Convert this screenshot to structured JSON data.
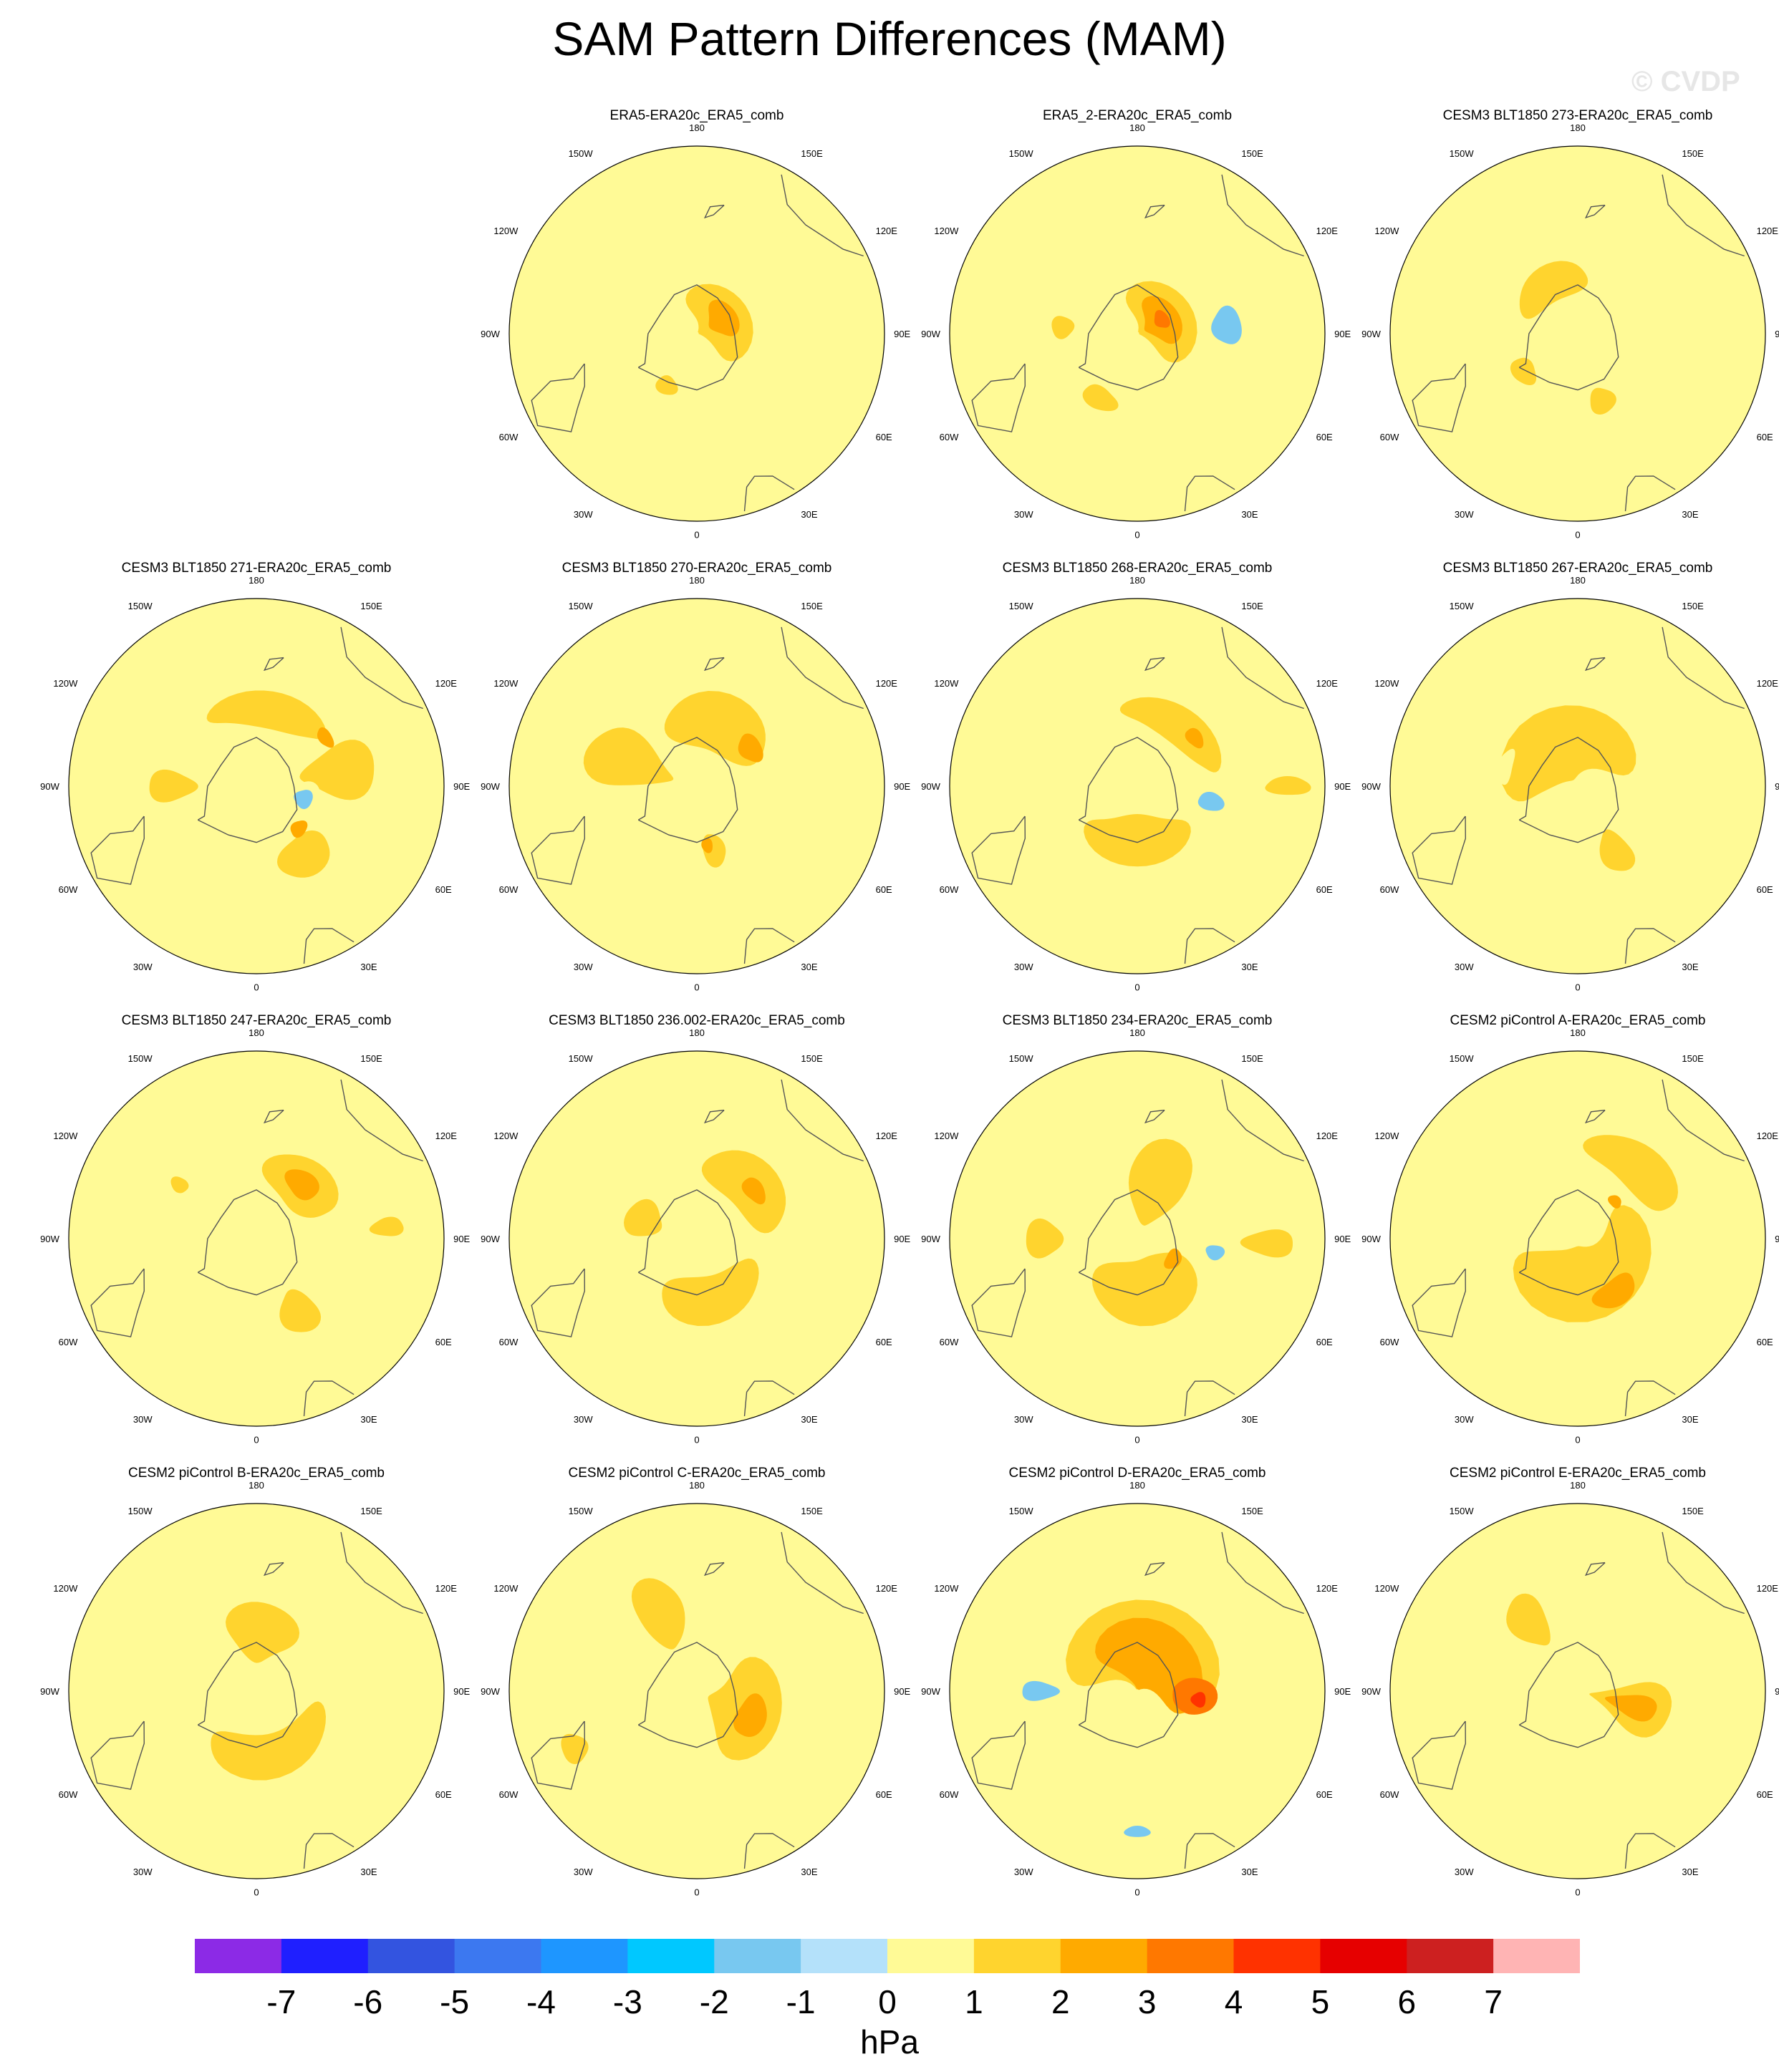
{
  "title": "SAM Pattern Differences (MAM)",
  "watermark": "© CVDP",
  "units": "hPa",
  "colorbar": {
    "colors": [
      "#8c2ae6",
      "#1f1fff",
      "#3354e0",
      "#3c78f0",
      "#1e96ff",
      "#00c8ff",
      "#78c8f0",
      "#b4e1fa",
      "#fffa96",
      "#ffd42e",
      "#ffaa00",
      "#ff7800",
      "#ff3200",
      "#e60000",
      "#cd2020",
      "#ffb4b4"
    ],
    "labels": [
      "-7",
      "-6",
      "-5",
      "-4",
      "-3",
      "-2",
      "-1",
      "0",
      "1",
      "2",
      "3",
      "4",
      "5",
      "6",
      "7"
    ]
  },
  "map_labels": {
    "lon_0": "0",
    "lon_30w": "30W",
    "lon_30e": "30E",
    "lon_60w": "60W",
    "lon_60e": "60E",
    "lon_90w": "90W",
    "lon_90e": "90E",
    "lon_120w": "120W",
    "lon_120e": "120E",
    "lon_150w": "150W",
    "lon_150e": "150E",
    "lon_180": "180"
  },
  "panels": [
    {
      "title": "ERA5-ERA20c_ERA5_comb",
      "slot": 1,
      "blobs": [
        {
          "level": 0.5,
          "lon": 150,
          "r": 0.55,
          "a": 0.36,
          "b": 0.18
        },
        {
          "level": 0.5,
          "lon": 95,
          "r": 0.55,
          "a": 0.1,
          "b": 0.28
        },
        {
          "level": 1.5,
          "lon": 120,
          "r": 0.15,
          "a": 0.2,
          "b": 0.16
        },
        {
          "level": 2.5,
          "lon": 120,
          "r": 0.16,
          "a": 0.1,
          "b": 0.08
        },
        {
          "level": 1.5,
          "lon": -30,
          "r": 0.32,
          "a": 0.06,
          "b": 0.05
        },
        {
          "level": 0.5,
          "lon": -25,
          "r": 0.85,
          "a": 0.06,
          "b": 0.08
        }
      ]
    },
    {
      "title": "ERA5_2-ERA20c_ERA5_comb",
      "slot": 2,
      "blobs": [
        {
          "level": 0.5,
          "lon": 95,
          "r": 0.42,
          "a": 0.26,
          "b": 0.22
        },
        {
          "level": -1.5,
          "lon": 95,
          "r": 0.48,
          "a": 0.1,
          "b": 0.08
        },
        {
          "level": 0.5,
          "lon": 160,
          "r": 0.52,
          "a": 0.25,
          "b": 0.14
        },
        {
          "level": 1.5,
          "lon": 120,
          "r": 0.15,
          "a": 0.2,
          "b": 0.18
        },
        {
          "level": 2.5,
          "lon": 120,
          "r": 0.15,
          "a": 0.13,
          "b": 0.1
        },
        {
          "level": 3.5,
          "lon": 120,
          "r": 0.15,
          "a": 0.05,
          "b": 0.04
        },
        {
          "level": 1.5,
          "lon": -30,
          "r": 0.4,
          "a": 0.1,
          "b": 0.06
        },
        {
          "level": 1.5,
          "lon": 265,
          "r": 0.4,
          "a": 0.06,
          "b": 0.06
        }
      ]
    },
    {
      "title": "CESM3 BLT1850 273-ERA20c_ERA5_comb",
      "slot": 3,
      "blobs": [
        {
          "level": 0.5,
          "lon": -25,
          "r": 0.78,
          "a": 0.18,
          "b": 0.14
        },
        {
          "level": 0.5,
          "lon": 92,
          "r": 0.32,
          "a": 0.06,
          "b": 0.09
        },
        {
          "level": 0.5,
          "lon": 270,
          "r": 0.85,
          "a": 0.06,
          "b": 0.13
        },
        {
          "level": 1.5,
          "lon": 210,
          "r": 0.3,
          "a": 0.22,
          "b": 0.1
        },
        {
          "level": 1.5,
          "lon": -55,
          "r": 0.35,
          "a": 0.08,
          "b": 0.06
        },
        {
          "level": 1.5,
          "lon": 20,
          "r": 0.38,
          "a": 0.07,
          "b": 0.07
        }
      ]
    },
    {
      "title": "CESM3 BLT1850 271-ERA20c_ERA5_comb",
      "slot": 4,
      "blobs": [
        {
          "level": 1.5,
          "lon": 170,
          "r": 0.42,
          "a": 0.33,
          "b": 0.1
        },
        {
          "level": 1.5,
          "lon": 100,
          "r": 0.45,
          "a": 0.14,
          "b": 0.2
        },
        {
          "level": 1.5,
          "lon": 35,
          "r": 0.45,
          "a": 0.15,
          "b": 0.11
        },
        {
          "level": 1.5,
          "lon": 270,
          "r": 0.45,
          "a": 0.08,
          "b": 0.13
        },
        {
          "level": 0.5,
          "lon": 75,
          "r": 0.25,
          "a": 0.09,
          "b": 0.1
        },
        {
          "level": -1.5,
          "lon": 75,
          "r": 0.26,
          "a": 0.05,
          "b": 0.05
        },
        {
          "level": 2.5,
          "lon": 45,
          "r": 0.32,
          "a": 0.05,
          "b": 0.04
        },
        {
          "level": 2.5,
          "lon": 125,
          "r": 0.45,
          "a": 0.06,
          "b": 0.035
        },
        {
          "level": 0.5,
          "lon": 180,
          "r": 0.9,
          "a": 0.35,
          "b": 0.07
        }
      ]
    },
    {
      "title": "CESM3 BLT1850 270-ERA20c_ERA5_comb",
      "slot": 5,
      "blobs": [
        {
          "level": 1.5,
          "lon": 160,
          "r": 0.35,
          "a": 0.3,
          "b": 0.16
        },
        {
          "level": 1.5,
          "lon": 250,
          "r": 0.38,
          "a": 0.14,
          "b": 0.24
        },
        {
          "level": 1.5,
          "lon": 15,
          "r": 0.35,
          "a": 0.06,
          "b": 0.09
        },
        {
          "level": 2.5,
          "lon": 125,
          "r": 0.35,
          "a": 0.08,
          "b": 0.06
        },
        {
          "level": 2.5,
          "lon": 10,
          "r": 0.32,
          "a": 0.03,
          "b": 0.04
        },
        {
          "level": 0.5,
          "lon": 85,
          "r": 0.47,
          "a": 0.08,
          "b": 0.1
        },
        {
          "level": 0.5,
          "lon": 215,
          "r": 0.85,
          "a": 0.12,
          "b": 0.12
        },
        {
          "level": 0.5,
          "lon": 175,
          "r": 0.8,
          "a": 0.06,
          "b": 0.05
        },
        {
          "level": 0.5,
          "lon": -10,
          "r": 0.85,
          "a": 0.1,
          "b": 0.06
        }
      ]
    },
    {
      "title": "CESM3 BLT1850 268-ERA20c_ERA5_comb",
      "slot": 6,
      "blobs": [
        {
          "level": 1.5,
          "lon": 0,
          "r": 0.3,
          "a": 0.28,
          "b": 0.14
        },
        {
          "level": 1.5,
          "lon": 145,
          "r": 0.4,
          "a": 0.32,
          "b": 0.1
        },
        {
          "level": 1.5,
          "lon": 90,
          "r": 0.8,
          "a": 0.05,
          "b": 0.12
        },
        {
          "level": 0.5,
          "lon": 78,
          "r": 0.4,
          "a": 0.08,
          "b": 0.12
        },
        {
          "level": -1.5,
          "lon": 78,
          "r": 0.4,
          "a": 0.05,
          "b": 0.07
        },
        {
          "level": 2.5,
          "lon": 130,
          "r": 0.4,
          "a": 0.06,
          "b": 0.04
        },
        {
          "level": 0.5,
          "lon": 180,
          "r": 0.88,
          "a": 0.33,
          "b": 0.08
        },
        {
          "level": 0.5,
          "lon": 270,
          "r": 0.9,
          "a": 0.1,
          "b": 0.1
        },
        {
          "level": 0.5,
          "lon": -30,
          "r": 0.9,
          "a": 0.3,
          "b": 0.07
        }
      ]
    },
    {
      "title": "CESM3 BLT1850 267-ERA20c_ERA5_comb",
      "slot": 7,
      "blobs": [
        {
          "level": 1.5,
          "lon": 200,
          "r": 0.25,
          "a": 0.4,
          "b": 0.2
        },
        {
          "level": 1.5,
          "lon": 30,
          "r": 0.4,
          "a": 0.08,
          "b": 0.12
        },
        {
          "level": 0.5,
          "lon": 110,
          "r": 0.55,
          "a": 0.1,
          "b": 0.1
        },
        {
          "level": 0.5,
          "lon": 255,
          "r": 0.4,
          "a": 0.1,
          "b": 0.04
        },
        {
          "level": 0.5,
          "lon": 200,
          "r": 0.9,
          "a": 0.55,
          "b": 0.1
        },
        {
          "level": 0.5,
          "lon": -25,
          "r": 0.9,
          "a": 0.1,
          "b": 0.08
        }
      ]
    },
    {
      "title": "CESM3 BLT1850 247-ERA20c_ERA5_comb",
      "slot": 8,
      "blobs": [
        {
          "level": 1.5,
          "lon": 140,
          "r": 0.38,
          "a": 0.22,
          "b": 0.14
        },
        {
          "level": 2.5,
          "lon": 140,
          "r": 0.38,
          "a": 0.1,
          "b": 0.07
        },
        {
          "level": 1.5,
          "lon": 30,
          "r": 0.45,
          "a": 0.1,
          "b": 0.12
        },
        {
          "level": 1.5,
          "lon": 95,
          "r": 0.7,
          "a": 0.05,
          "b": 0.09
        },
        {
          "level": 1.5,
          "lon": 235,
          "r": 0.5,
          "a": 0.04,
          "b": 0.05
        },
        {
          "level": 0.5,
          "lon": 180,
          "r": 0.88,
          "a": 0.45,
          "b": 0.09
        },
        {
          "level": 0.5,
          "lon": -20,
          "r": 0.9,
          "a": 0.15,
          "b": 0.08
        }
      ]
    },
    {
      "title": "CESM3 BLT1850 236.002-ERA20c_ERA5_comb",
      "slot": 9,
      "blobs": [
        {
          "level": 1.5,
          "lon": 15,
          "r": 0.33,
          "a": 0.3,
          "b": 0.13
        },
        {
          "level": 1.5,
          "lon": 135,
          "r": 0.4,
          "a": 0.28,
          "b": 0.14
        },
        {
          "level": 1.5,
          "lon": 250,
          "r": 0.3,
          "a": 0.1,
          "b": 0.1
        },
        {
          "level": 2.5,
          "lon": 130,
          "r": 0.4,
          "a": 0.08,
          "b": 0.05
        },
        {
          "level": 0.5,
          "lon": 85,
          "r": 0.5,
          "a": 0.09,
          "b": 0.1
        },
        {
          "level": 0.5,
          "lon": 195,
          "r": 0.88,
          "a": 0.2,
          "b": 0.1
        },
        {
          "level": 0.5,
          "lon": -25,
          "r": 0.88,
          "a": 0.12,
          "b": 0.08
        }
      ]
    },
    {
      "title": "CESM3 BLT1850 234-ERA20c_ERA5_comb",
      "slot": 10,
      "blobs": [
        {
          "level": 1.5,
          "lon": 10,
          "r": 0.28,
          "a": 0.3,
          "b": 0.18
        },
        {
          "level": 1.5,
          "lon": 160,
          "r": 0.3,
          "a": 0.15,
          "b": 0.24
        },
        {
          "level": 1.5,
          "lon": 270,
          "r": 0.5,
          "a": 0.1,
          "b": 0.1
        },
        {
          "level": 1.5,
          "lon": 88,
          "r": 0.7,
          "a": 0.07,
          "b": 0.14
        },
        {
          "level": 0.5,
          "lon": 80,
          "r": 0.42,
          "a": 0.07,
          "b": 0.13
        },
        {
          "level": -1.5,
          "lon": 80,
          "r": 0.42,
          "a": 0.04,
          "b": 0.05
        },
        {
          "level": 2.5,
          "lon": 60,
          "r": 0.22,
          "a": 0.06,
          "b": 0.04
        },
        {
          "level": 0.5,
          "lon": -25,
          "r": 0.88,
          "a": 0.12,
          "b": 0.07
        }
      ]
    },
    {
      "title": "CESM2 piControl A-ERA20c_ERA5_comb",
      "slot": 11,
      "blobs": [
        {
          "level": 1.5,
          "lon": 20,
          "r": 0.25,
          "a": 0.45,
          "b": 0.2
        },
        {
          "level": 1.5,
          "lon": 140,
          "r": 0.5,
          "a": 0.3,
          "b": 0.12
        },
        {
          "level": 2.5,
          "lon": 35,
          "r": 0.35,
          "a": 0.13,
          "b": 0.07
        },
        {
          "level": 2.5,
          "lon": 135,
          "r": 0.28,
          "a": 0.04,
          "b": 0.03
        },
        {
          "level": 0.5,
          "lon": 75,
          "r": 0.5,
          "a": 0.1,
          "b": 0.08
        },
        {
          "level": 0.5,
          "lon": -10,
          "r": 0.85,
          "a": 0.22,
          "b": 0.12
        },
        {
          "level": 0.5,
          "lon": 210,
          "r": 0.82,
          "a": 0.25,
          "b": 0.12
        }
      ]
    },
    {
      "title": "CESM2 piControl B-ERA20c_ERA5_comb",
      "slot": 12,
      "blobs": [
        {
          "level": 1.5,
          "lon": 15,
          "r": 0.35,
          "a": 0.38,
          "b": 0.12
        },
        {
          "level": 1.5,
          "lon": 175,
          "r": 0.32,
          "a": 0.18,
          "b": 0.16
        },
        {
          "level": 0.5,
          "lon": -15,
          "r": 0.78,
          "a": 0.25,
          "b": 0.12
        },
        {
          "level": 0.5,
          "lon": 210,
          "r": 0.85,
          "a": 0.35,
          "b": 0.12
        }
      ]
    },
    {
      "title": "CESM2 piControl C-ERA20c_ERA5_comb",
      "slot": 13,
      "blobs": [
        {
          "level": 1.5,
          "lon": 70,
          "r": 0.28,
          "a": 0.25,
          "b": 0.2
        },
        {
          "level": 2.5,
          "lon": 65,
          "r": 0.32,
          "a": 0.12,
          "b": 0.08
        },
        {
          "level": 1.5,
          "lon": 205,
          "r": 0.45,
          "a": 0.12,
          "b": 0.2
        },
        {
          "level": 1.5,
          "lon": 295,
          "r": 0.72,
          "a": 0.08,
          "b": 0.07
        },
        {
          "level": 0.5,
          "lon": 270,
          "r": 0.4,
          "a": 0.1,
          "b": 0.1
        },
        {
          "level": 0.5,
          "lon": 0,
          "r": 0.85,
          "a": 0.15,
          "b": 0.08
        },
        {
          "level": 0.5,
          "lon": 160,
          "r": 0.88,
          "a": 0.18,
          "b": 0.09
        }
      ]
    },
    {
      "title": "CESM2 piControl D-ERA20c_ERA5_comb",
      "slot": 14,
      "blobs": [
        {
          "level": 0.5,
          "lon": 110,
          "r": 0.72,
          "a": 0.55,
          "b": 0.18
        },
        {
          "level": 0.5,
          "lon": 265,
          "r": 0.52,
          "a": 0.1,
          "b": 0.2
        },
        {
          "level": -1.5,
          "lon": 270,
          "r": 0.52,
          "a": 0.05,
          "b": 0.1
        },
        {
          "level": 0.5,
          "lon": 0,
          "r": 0.75,
          "a": 0.15,
          "b": 0.08
        },
        {
          "level": -1.5,
          "lon": 0,
          "r": 0.75,
          "a": 0.07,
          "b": 0.03
        },
        {
          "level": 1.5,
          "lon": 170,
          "r": 0.25,
          "a": 0.4,
          "b": 0.26
        },
        {
          "level": 2.5,
          "lon": 150,
          "r": 0.2,
          "a": 0.3,
          "b": 0.2
        },
        {
          "level": 3.5,
          "lon": 85,
          "r": 0.3,
          "a": 0.1,
          "b": 0.12
        },
        {
          "level": 4.5,
          "lon": 82,
          "r": 0.33,
          "a": 0.04,
          "b": 0.04
        }
      ]
    },
    {
      "title": "CESM2 piControl E-ERA20c_ERA5_comb",
      "slot": 15,
      "blobs": [
        {
          "level": 1.5,
          "lon": 75,
          "r": 0.3,
          "a": 0.12,
          "b": 0.22
        },
        {
          "level": 2.5,
          "lon": 75,
          "r": 0.3,
          "a": 0.06,
          "b": 0.14
        },
        {
          "level": 1.5,
          "lon": 215,
          "r": 0.45,
          "a": 0.1,
          "b": 0.15
        },
        {
          "level": 0.5,
          "lon": 270,
          "r": 0.45,
          "a": 0.14,
          "b": 0.12
        },
        {
          "level": 0.5,
          "lon": 100,
          "r": 0.8,
          "a": 0.35,
          "b": 0.12
        },
        {
          "level": 0.5,
          "lon": 170,
          "r": 0.55,
          "a": 0.1,
          "b": 0.08
        },
        {
          "level": 0.5,
          "lon": -10,
          "r": 0.85,
          "a": 0.2,
          "b": 0.1
        }
      ]
    }
  ]
}
